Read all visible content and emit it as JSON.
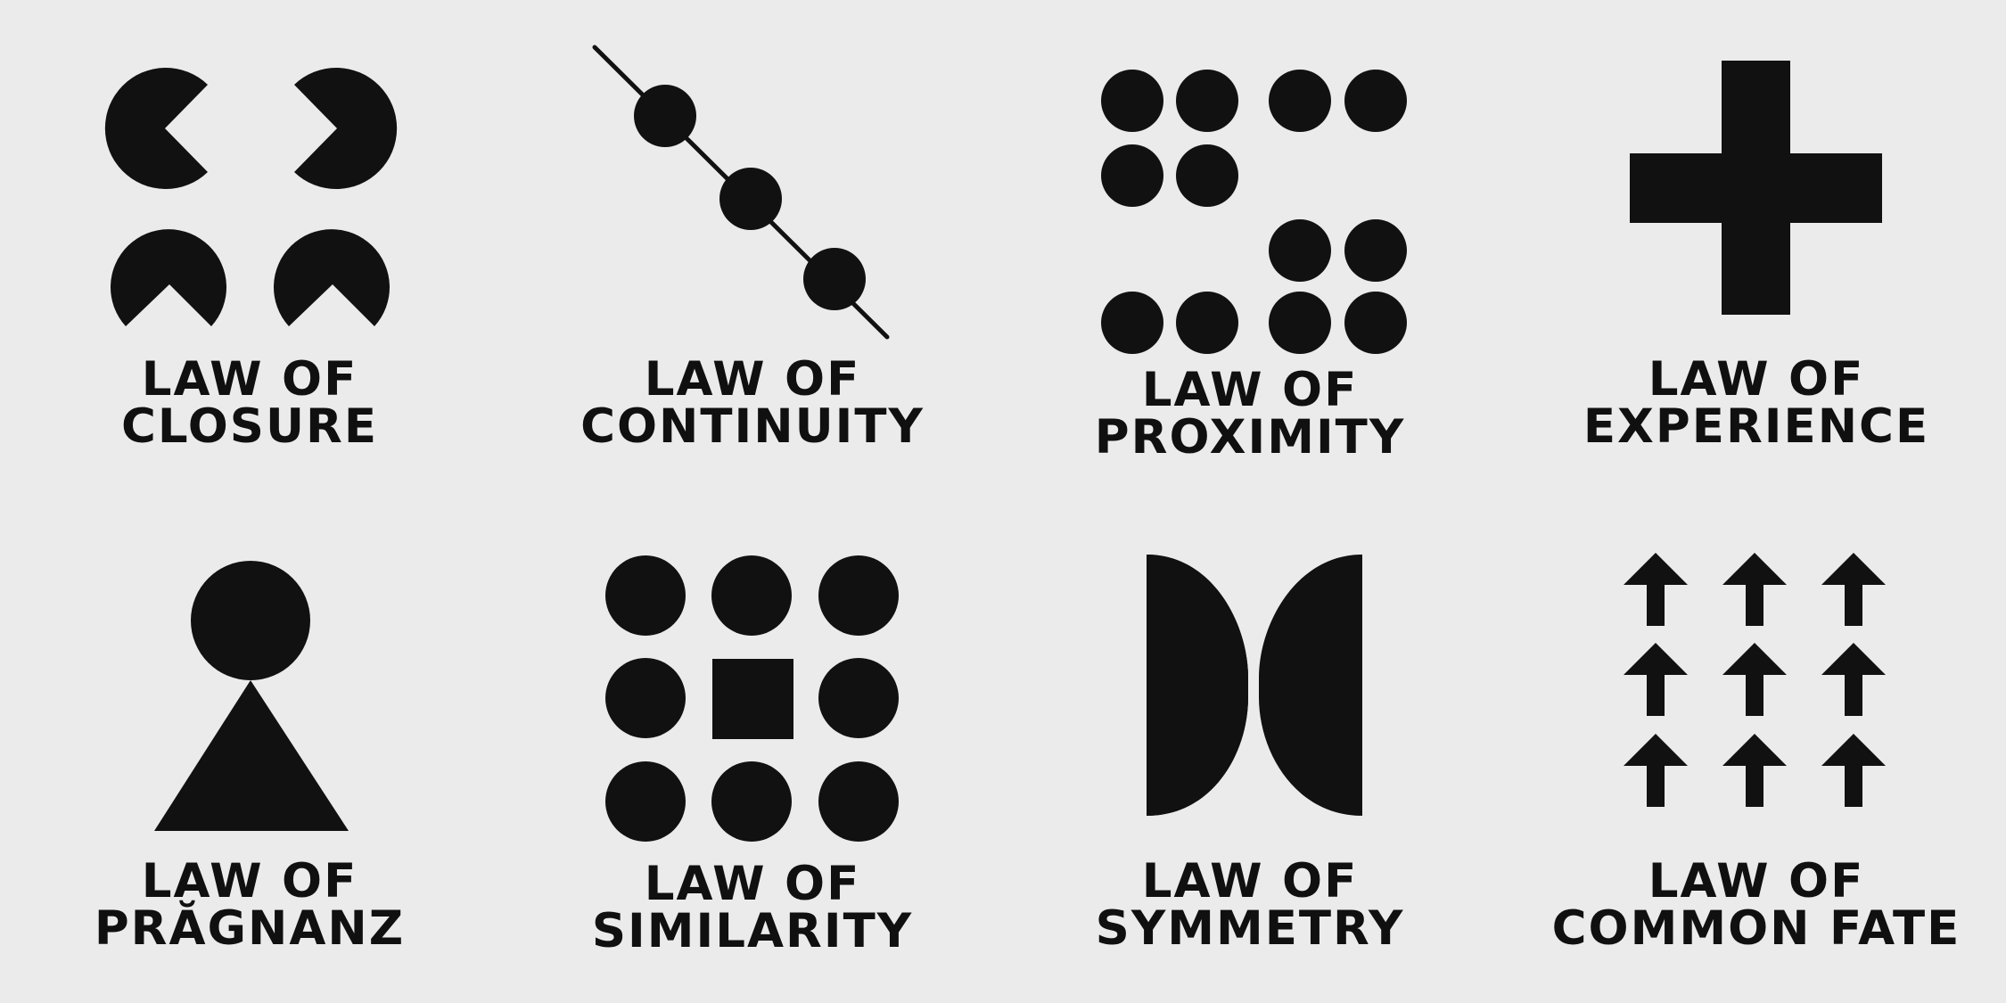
{
  "colors": {
    "background": "#ebebeb",
    "ink": "#111111"
  },
  "panels": [
    {
      "id": "closure",
      "icon": "closure-pacman-icon",
      "line1": "LAW OF",
      "line2": "CLOSURE"
    },
    {
      "id": "continuity",
      "icon": "continuity-line-icon",
      "line1": "LAW OF",
      "line2": "CONTINUITY"
    },
    {
      "id": "proximity",
      "icon": "proximity-dots-icon",
      "line1": "LAW OF",
      "line2": "PROXIMITY"
    },
    {
      "id": "experience",
      "icon": "experience-cross-icon",
      "line1": "LAW OF",
      "line2": "EXPERIENCE"
    },
    {
      "id": "pragnanz",
      "icon": "pragnanz-figure-icon",
      "line1": "LAW OF",
      "line2": "PRĂGNANZ"
    },
    {
      "id": "similarity",
      "icon": "similarity-grid-icon",
      "line1": "LAW OF",
      "line2": "SIMILARITY"
    },
    {
      "id": "symmetry",
      "icon": "symmetry-brackets-icon",
      "line1": "LAW OF",
      "line2": "SYMMETRY"
    },
    {
      "id": "common-fate",
      "icon": "common-fate-arrows-icon",
      "line1": "LAW OF",
      "line2": "COMMON FATE"
    }
  ]
}
